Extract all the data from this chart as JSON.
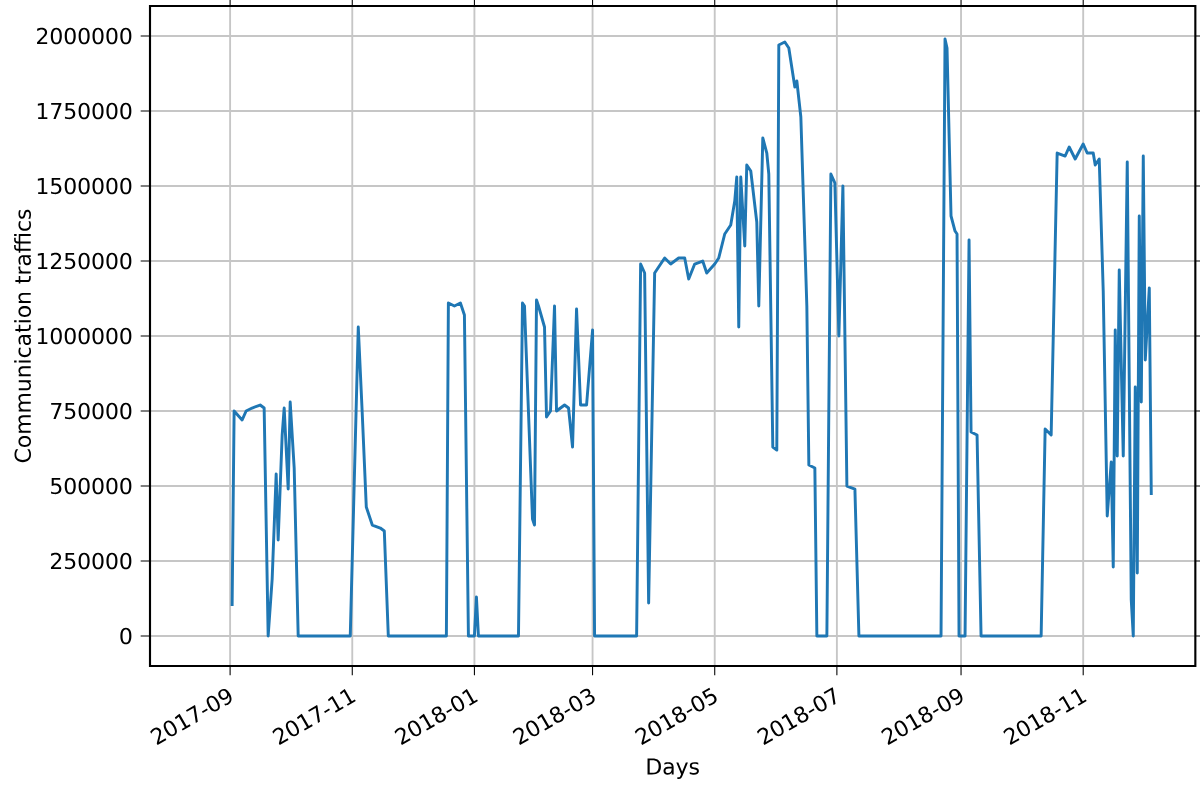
{
  "chart_data": {
    "type": "line",
    "xlabel": "Days",
    "ylabel": "Communication traffics",
    "color": "#1f77b4",
    "grid": true,
    "xlim": [
      "2017-07-23",
      "2018-12-27"
    ],
    "ylim": [
      -100000,
      2100000
    ],
    "xticks": [
      "2017-09",
      "2017-11",
      "2018-01",
      "2018-03",
      "2018-05",
      "2018-07",
      "2018-09",
      "2018-11"
    ],
    "yticks": [
      0,
      250000,
      500000,
      750000,
      1000000,
      1250000,
      1500000,
      1750000,
      2000000
    ],
    "x": [
      "2017-09-02",
      "2017-09-03",
      "2017-09-07",
      "2017-09-09",
      "2017-09-12",
      "2017-09-16",
      "2017-09-18",
      "2017-09-20",
      "2017-09-22",
      "2017-09-24",
      "2017-09-25",
      "2017-09-27",
      "2017-09-28",
      "2017-09-30",
      "2017-10-01",
      "2017-10-03",
      "2017-10-05",
      "2017-10-31",
      "2017-11-04",
      "2017-11-06",
      "2017-11-08",
      "2017-11-11",
      "2017-11-15",
      "2017-11-17",
      "2017-11-19",
      "2017-12-18",
      "2017-12-19",
      "2017-12-22",
      "2017-12-25",
      "2017-12-27",
      "2017-12-29",
      "2018-01-01",
      "2018-01-02",
      "2018-01-03",
      "2018-01-23",
      "2018-01-25",
      "2018-01-26",
      "2018-01-30",
      "2018-01-31",
      "2018-02-01",
      "2018-02-02",
      "2018-02-05",
      "2018-02-06",
      "2018-02-08",
      "2018-02-10",
      "2018-02-11",
      "2018-02-15",
      "2018-02-17",
      "2018-02-19",
      "2018-02-21",
      "2018-02-23",
      "2018-02-26",
      "2018-03-01",
      "2018-03-02",
      "2018-03-23",
      "2018-03-25",
      "2018-03-27",
      "2018-03-29",
      "2018-04-01",
      "2018-04-04",
      "2018-04-06",
      "2018-04-09",
      "2018-04-13",
      "2018-04-16",
      "2018-04-18",
      "2018-04-21",
      "2018-04-25",
      "2018-04-27",
      "2018-05-01",
      "2018-05-03",
      "2018-05-06",
      "2018-05-09",
      "2018-05-11",
      "2018-05-12",
      "2018-05-13",
      "2018-05-14",
      "2018-05-16",
      "2018-05-17",
      "2018-05-19",
      "2018-05-22",
      "2018-05-23",
      "2018-05-25",
      "2018-05-27",
      "2018-05-28",
      "2018-05-30",
      "2018-06-01",
      "2018-06-02",
      "2018-06-05",
      "2018-06-07",
      "2018-06-10",
      "2018-06-11",
      "2018-06-13",
      "2018-06-16",
      "2018-06-17",
      "2018-06-20",
      "2018-06-21",
      "2018-06-26",
      "2018-06-28",
      "2018-06-30",
      "2018-07-02",
      "2018-07-04",
      "2018-07-06",
      "2018-07-10",
      "2018-07-12",
      "2018-08-22",
      "2018-08-24",
      "2018-08-25",
      "2018-08-27",
      "2018-08-29",
      "2018-08-30",
      "2018-08-31",
      "2018-09-03",
      "2018-09-05",
      "2018-09-06",
      "2018-09-09",
      "2018-09-11",
      "2018-10-11",
      "2018-10-13",
      "2018-10-16",
      "2018-10-19",
      "2018-10-23",
      "2018-10-25",
      "2018-10-28",
      "2018-11-01",
      "2018-11-03",
      "2018-11-06",
      "2018-11-07",
      "2018-11-09",
      "2018-11-11",
      "2018-11-13",
      "2018-11-15",
      "2018-11-16",
      "2018-11-17",
      "2018-11-18",
      "2018-11-19",
      "2018-11-21",
      "2018-11-23",
      "2018-11-25",
      "2018-11-26",
      "2018-11-27",
      "2018-11-28",
      "2018-11-29",
      "2018-11-30",
      "2018-12-01",
      "2018-12-02",
      "2018-12-04",
      "2018-12-05"
    ],
    "values": [
      100000,
      750000,
      720000,
      750000,
      760000,
      770000,
      760000,
      0,
      190000,
      540000,
      320000,
      670000,
      760000,
      490000,
      780000,
      560000,
      0,
      0,
      1030000,
      740000,
      430000,
      370000,
      360000,
      350000,
      0,
      0,
      1110000,
      1100000,
      1110000,
      1070000,
      0,
      0,
      130000,
      0,
      0,
      1110000,
      1100000,
      390000,
      370000,
      1120000,
      1100000,
      1030000,
      730000,
      750000,
      1100000,
      750000,
      770000,
      760000,
      630000,
      1090000,
      770000,
      770000,
      1020000,
      0,
      0,
      1240000,
      1210000,
      110000,
      1210000,
      1240000,
      1260000,
      1240000,
      1260000,
      1260000,
      1190000,
      1240000,
      1250000,
      1210000,
      1240000,
      1260000,
      1340000,
      1370000,
      1450000,
      1530000,
      1030000,
      1530000,
      1300000,
      1570000,
      1550000,
      1380000,
      1100000,
      1660000,
      1610000,
      1540000,
      630000,
      620000,
      1970000,
      1980000,
      1960000,
      1830000,
      1850000,
      1730000,
      1100000,
      570000,
      560000,
      0,
      0,
      1540000,
      1510000,
      1000000,
      1500000,
      500000,
      490000,
      0,
      0,
      1990000,
      1960000,
      1400000,
      1350000,
      1340000,
      0,
      0,
      1320000,
      680000,
      670000,
      0,
      0,
      690000,
      670000,
      1610000,
      1600000,
      1630000,
      1590000,
      1640000,
      1610000,
      1610000,
      1570000,
      1590000,
      1150000,
      400000,
      580000,
      230000,
      1020000,
      600000,
      1220000,
      600000,
      1580000,
      120000,
      0,
      830000,
      210000,
      1400000,
      780000,
      1600000,
      920000,
      1160000,
      470000
    ]
  }
}
